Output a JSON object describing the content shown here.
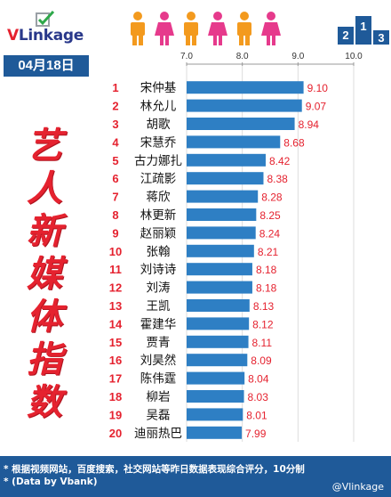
{
  "brand": {
    "logo_v": "V",
    "logo_rest": "Linkage"
  },
  "date_badge": "04月18日",
  "side_title": [
    "艺",
    "人",
    "新",
    "媒",
    "体",
    "指",
    "数"
  ],
  "footer": {
    "line1": "* 根据视频网站，百度搜索，社交网站等昨日数据表现综合评分，10分制",
    "line2": "* (Data by Vbank)",
    "credit": "@Vlinkage"
  },
  "colors": {
    "bar": "#2e7fc4",
    "rank": "#e5222f",
    "value": "#e5222f",
    "badge": "#1f5a99",
    "person_orange": "#f39a1e",
    "person_pink": "#e63a8c"
  },
  "icons": [
    "logo-check-icon",
    "person-icon",
    "podium-icon"
  ],
  "chart_data": {
    "type": "bar",
    "orientation": "horizontal",
    "title": "",
    "xlabel": "",
    "ylabel": "",
    "xlim": [
      7.0,
      10.0
    ],
    "ticks": [
      "7.0",
      "8.0",
      "9.0",
      "10.0"
    ],
    "grid": true,
    "ranks": [
      "1",
      "2",
      "3",
      "4",
      "5",
      "6",
      "7",
      "8",
      "9",
      "10",
      "11",
      "12",
      "13",
      "14",
      "15",
      "16",
      "17",
      "18",
      "19",
      "20"
    ],
    "categories": [
      "宋仲基",
      "林允儿",
      "胡歌",
      "宋慧乔",
      "古力娜扎",
      "江疏影",
      "蒋欣",
      "林更新",
      "赵丽颖",
      "张翰",
      "刘诗诗",
      "刘涛",
      "王凯",
      "霍建华",
      "贾青",
      "刘昊然",
      "陈伟霆",
      "柳岩",
      "吴磊",
      "迪丽热巴"
    ],
    "values": [
      9.1,
      9.07,
      8.94,
      8.68,
      8.42,
      8.38,
      8.28,
      8.25,
      8.24,
      8.21,
      8.18,
      8.18,
      8.13,
      8.12,
      8.11,
      8.09,
      8.04,
      8.03,
      8.01,
      7.99
    ],
    "value_labels": [
      "9.10",
      "9.07",
      "8.94",
      "8.68",
      "8.42",
      "8.38",
      "8.28",
      "8.25",
      "8.24",
      "8.21",
      "8.18",
      "8.18",
      "8.13",
      "8.12",
      "8.11",
      "8.09",
      "8.04",
      "8.03",
      "8.01",
      "7.99"
    ]
  }
}
